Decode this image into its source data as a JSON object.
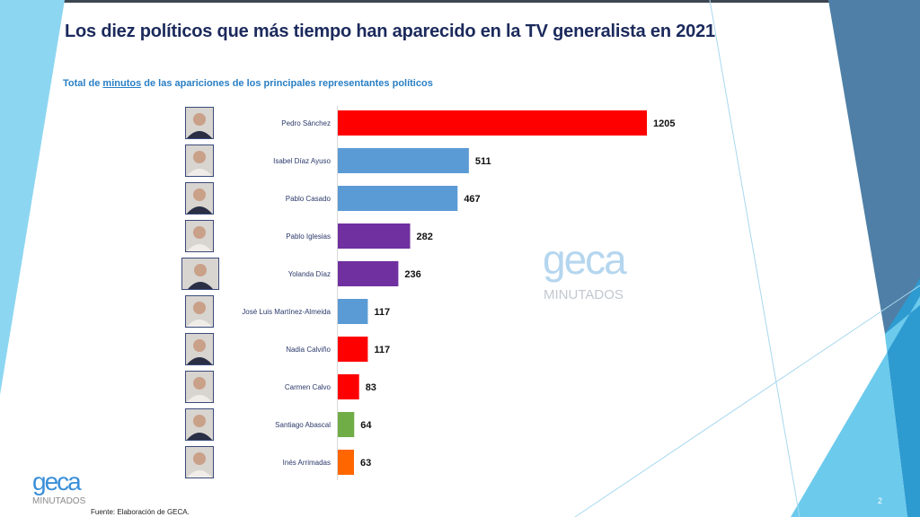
{
  "slide": {
    "title": "Los diez políticos que más tiempo han aparecido en la TV generalista en 2021",
    "subtitle_pre": "Total de ",
    "subtitle_link": "minutos",
    "subtitle_post": " de las apariciones de los principales representantes políticos",
    "source": "Fuente: Elaboración de GECA.",
    "page_number": "2",
    "logo_text": "geca",
    "logo_sub": "MINUTADOS",
    "watermark_text": "geca",
    "watermark_sub": "MINUTADOS"
  },
  "chart_data": {
    "type": "bar",
    "orientation": "horizontal",
    "title": "",
    "xlabel": "",
    "ylabel": "",
    "grid": false,
    "categories": [
      "Pedro Sánchez",
      "Isabel Díaz Ayuso",
      "Pablo Casado",
      "Pablo Iglesias",
      "Yolanda Díaz",
      "José Luis Martínez-Almeida",
      "Nadia Calviño",
      "Carmen Calvo",
      "Santiago Abascal",
      "Inés Arrimadas"
    ],
    "values": [
      1205,
      511,
      467,
      282,
      236,
      117,
      117,
      83,
      64,
      63
    ],
    "colors": [
      "#ff0000",
      "#5b9bd5",
      "#5b9bd5",
      "#7030a0",
      "#7030a0",
      "#5b9bd5",
      "#ff0000",
      "#ff0000",
      "#70ad47",
      "#ff6600"
    ],
    "xlim": [
      0,
      1205
    ],
    "data_labels": true
  }
}
